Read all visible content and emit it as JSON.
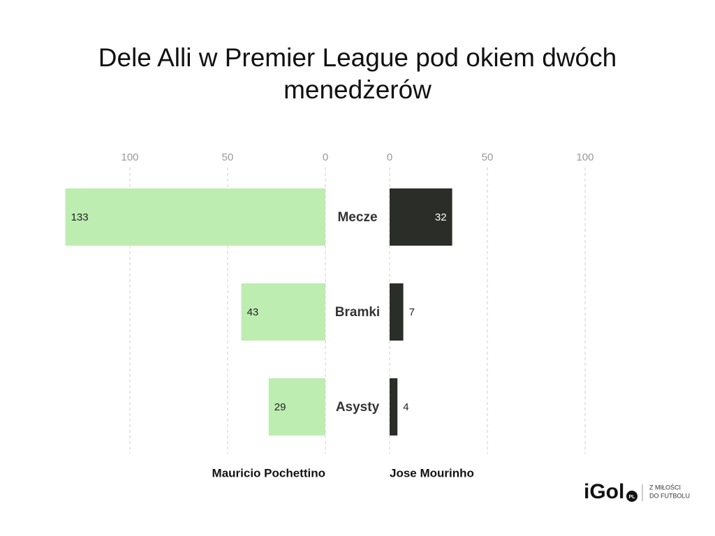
{
  "chart_data": {
    "type": "butterfly",
    "title": "Dele Alli w Premier League pod okiem dwóch menedżerów",
    "categories": [
      "Mecze",
      "Bramki",
      "Asysty"
    ],
    "series": [
      {
        "name": "Mauricio Pochettino",
        "color": "#bdedb1",
        "values": [
          133,
          43,
          29
        ]
      },
      {
        "name": "Jose Mourinho",
        "color": "#2a2d28",
        "values": [
          32,
          7,
          4
        ]
      }
    ],
    "xlim": [
      0,
      135
    ],
    "xticks": [
      0,
      50,
      100
    ],
    "grid": true
  },
  "branding": {
    "logo": "iGol",
    "badge": "PL",
    "tagline_1": "Z MIŁOŚCI",
    "tagline_2": "DO FUTBOLU"
  }
}
